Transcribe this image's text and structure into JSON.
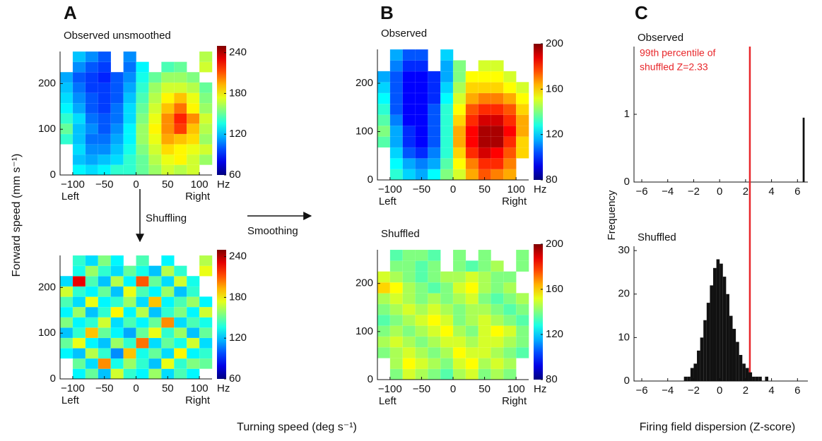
{
  "figure": {
    "panel_labels": [
      "A",
      "B",
      "C"
    ],
    "y_label": "Forward speed (mm s⁻¹)",
    "x_label": "Turning speed (deg s⁻¹)",
    "hist_y_label": "Frequency",
    "hist_x_label": "Firing field dispersion (Z-score)",
    "arrow_down": "Shuffling",
    "arrow_right": "Smoothing"
  },
  "chart_data": [
    {
      "type": "heatmap",
      "title": "Observed unsmoothed",
      "xlim": [
        -120,
        120
      ],
      "ylim": [
        0,
        270
      ],
      "xticks": [
        {
          "value": -100,
          "label": "−100"
        },
        {
          "value": -50,
          "label": "−50"
        },
        0,
        50,
        100
      ],
      "yticks": [
        0,
        100,
        200
      ],
      "x_end_labels": [
        "Left",
        "Right"
      ],
      "colormap": "jet",
      "clim": [
        60,
        250
      ],
      "cticks": [
        60,
        120,
        180,
        240
      ],
      "colorbar_unit": "Hz",
      "z": [
        [
          null,
          130,
          125,
          130,
          140,
          140,
          150,
          160,
          170,
          165,
          170,
          null
        ],
        [
          null,
          120,
          115,
          120,
          125,
          140,
          150,
          165,
          175,
          180,
          170,
          160
        ],
        [
          null,
          125,
          110,
          110,
          120,
          135,
          155,
          170,
          185,
          180,
          175,
          170
        ],
        [
          140,
          120,
          105,
          105,
          115,
          130,
          160,
          175,
          195,
          190,
          185,
          160
        ],
        [
          150,
          120,
          110,
          100,
          110,
          130,
          160,
          180,
          200,
          215,
          190,
          165
        ],
        [
          140,
          125,
          105,
          100,
          105,
          125,
          155,
          175,
          200,
          220,
          200,
          170
        ],
        [
          130,
          115,
          100,
          95,
          105,
          125,
          150,
          170,
          190,
          205,
          180,
          160
        ],
        [
          125,
          110,
          100,
          95,
          100,
          120,
          145,
          165,
          180,
          190,
          175,
          155
        ],
        [
          120,
          105,
          95,
          95,
          100,
          115,
          140,
          160,
          170,
          170,
          165,
          150
        ],
        [
          115,
          100,
          95,
          90,
          100,
          110,
          135,
          150,
          160,
          160,
          155,
          null
        ],
        [
          null,
          110,
          100,
          95,
          null,
          105,
          130,
          null,
          145,
          150,
          null,
          170
        ],
        [
          null,
          120,
          110,
          100,
          null,
          110,
          null,
          null,
          null,
          null,
          null,
          165
        ]
      ]
    },
    {
      "type": "heatmap",
      "xlim": [
        -120,
        120
      ],
      "ylim": [
        0,
        270
      ],
      "xticks": [
        {
          "value": -100,
          "label": "−100"
        },
        {
          "value": -50,
          "label": "−50"
        },
        0,
        50,
        100
      ],
      "yticks": [
        0,
        100,
        200
      ],
      "x_end_labels": [
        "Left",
        "Right"
      ],
      "colormap": "jet",
      "clim": [
        60,
        250
      ],
      "cticks": [
        60,
        120,
        180,
        240
      ],
      "colorbar_unit": "Hz",
      "z": [
        [
          null,
          130,
          150,
          120,
          170,
          140,
          130,
          160,
          125,
          145,
          130,
          null
        ],
        [
          null,
          150,
          125,
          200,
          135,
          160,
          140,
          120,
          175,
          140,
          155,
          150
        ],
        [
          130,
          120,
          165,
          140,
          110,
          190,
          135,
          150,
          125,
          180,
          130,
          140
        ],
        [
          150,
          175,
          130,
          120,
          160,
          140,
          205,
          125,
          150,
          135,
          170,
          125
        ],
        [
          120,
          140,
          190,
          150,
          130,
          115,
          150,
          175,
          140,
          160,
          120,
          150
        ],
        [
          155,
          130,
          140,
          170,
          125,
          145,
          130,
          150,
          200,
          125,
          145,
          135
        ],
        [
          130,
          160,
          120,
          140,
          180,
          130,
          165,
          120,
          140,
          155,
          130,
          170
        ],
        [
          145,
          125,
          175,
          130,
          140,
          160,
          125,
          190,
          130,
          145,
          160,
          130
        ],
        [
          170,
          140,
          130,
          150,
          120,
          175,
          145,
          130,
          160,
          120,
          140,
          null
        ],
        [
          125,
          230,
          145,
          120,
          165,
          130,
          210,
          150,
          125,
          170,
          135,
          null
        ],
        [
          null,
          135,
          160,
          140,
          125,
          150,
          135,
          120,
          165,
          140,
          null,
          175
        ],
        [
          null,
          140,
          125,
          155,
          130,
          null,
          145,
          null,
          130,
          null,
          null,
          165
        ]
      ]
    },
    {
      "type": "heatmap",
      "title": "Observed",
      "xlim": [
        -120,
        120
      ],
      "ylim": [
        0,
        270
      ],
      "xticks": [
        {
          "value": -100,
          "label": "−100"
        },
        {
          "value": -50,
          "label": "−50"
        },
        0,
        50,
        100
      ],
      "yticks": [
        0,
        100,
        200
      ],
      "x_end_labels": [
        "Left",
        "Right"
      ],
      "colormap": "jet",
      "clim": [
        80,
        200
      ],
      "cticks": [
        80,
        120,
        160,
        200
      ],
      "colorbar_unit": "Hz",
      "z": [
        [
          null,
          130,
          120,
          115,
          125,
          140,
          150,
          165,
          175,
          170,
          165,
          null
        ],
        [
          null,
          125,
          115,
          110,
          115,
          135,
          155,
          170,
          180,
          180,
          170,
          null
        ],
        [
          null,
          120,
          105,
          100,
          110,
          130,
          160,
          180,
          190,
          185,
          175,
          160
        ],
        [
          135,
          115,
          100,
          95,
          105,
          130,
          165,
          185,
          195,
          195,
          180,
          160
        ],
        [
          140,
          115,
          100,
          95,
          105,
          130,
          165,
          185,
          195,
          195,
          185,
          165
        ],
        [
          135,
          110,
          95,
          95,
          105,
          130,
          160,
          180,
          190,
          190,
          180,
          165
        ],
        [
          130,
          105,
          95,
          95,
          105,
          130,
          155,
          175,
          180,
          180,
          175,
          160
        ],
        [
          125,
          105,
          95,
          95,
          100,
          125,
          150,
          165,
          170,
          170,
          165,
          155
        ],
        [
          120,
          105,
          95,
          95,
          100,
          120,
          145,
          160,
          160,
          160,
          155,
          150
        ],
        [
          115,
          105,
          95,
          95,
          100,
          115,
          140,
          155,
          155,
          155,
          150,
          null
        ],
        [
          null,
          110,
          100,
          100,
          null,
          115,
          140,
          null,
          150,
          150,
          null,
          null
        ],
        [
          null,
          115,
          105,
          105,
          null,
          120,
          null,
          null,
          null,
          null,
          null,
          null
        ]
      ]
    },
    {
      "type": "heatmap",
      "title": "Shuffled",
      "xlim": [
        -120,
        120
      ],
      "ylim": [
        0,
        270
      ],
      "xticks": [
        {
          "value": -100,
          "label": "−100"
        },
        {
          "value": -50,
          "label": "−50"
        },
        0,
        50,
        100
      ],
      "yticks": [
        0,
        100,
        200
      ],
      "x_end_labels": [
        "Left",
        "Right"
      ],
      "colormap": "jet",
      "clim": [
        80,
        200
      ],
      "cticks": [
        80,
        120,
        160,
        200
      ],
      "colorbar_unit": "Hz",
      "z": [
        [
          null,
          140,
          150,
          145,
          140,
          135,
          145,
          150,
          140,
          145,
          140,
          null
        ],
        [
          null,
          145,
          155,
          150,
          145,
          140,
          150,
          155,
          145,
          150,
          145,
          null
        ],
        [
          140,
          145,
          150,
          145,
          140,
          145,
          155,
          150,
          150,
          145,
          140,
          135
        ],
        [
          145,
          150,
          145,
          140,
          145,
          150,
          150,
          145,
          150,
          150,
          145,
          140
        ],
        [
          140,
          145,
          140,
          145,
          150,
          155,
          145,
          140,
          150,
          155,
          150,
          140
        ],
        [
          135,
          140,
          145,
          150,
          155,
          150,
          140,
          145,
          150,
          145,
          140,
          135
        ],
        [
          140,
          145,
          150,
          145,
          150,
          145,
          140,
          145,
          145,
          140,
          135,
          140
        ],
        [
          145,
          150,
          145,
          140,
          145,
          140,
          145,
          150,
          140,
          135,
          140,
          145
        ],
        [
          160,
          155,
          145,
          140,
          135,
          140,
          150,
          155,
          145,
          140,
          145,
          null
        ],
        [
          150,
          145,
          140,
          135,
          140,
          145,
          145,
          150,
          145,
          140,
          140,
          null
        ],
        [
          null,
          140,
          140,
          135,
          140,
          null,
          140,
          135,
          140,
          145,
          null,
          140
        ],
        [
          null,
          135,
          140,
          140,
          135,
          null,
          140,
          null,
          140,
          null,
          null,
          140
        ]
      ]
    },
    {
      "type": "histogram",
      "title": "Observed",
      "xlim": [
        -6.6,
        6.8
      ],
      "ylim": [
        0,
        2
      ],
      "xticks": [
        {
          "value": -6,
          "label": "−6"
        },
        {
          "value": -4,
          "label": "−4"
        },
        {
          "value": -2,
          "label": "−2"
        },
        0,
        2,
        4,
        6
      ],
      "yticks": [
        0,
        1
      ],
      "bins": [
        6.4,
        6.55
      ],
      "counts": [
        0.95
      ],
      "color": "#111111",
      "threshold": 2.33,
      "threshold_color": "#e8262a",
      "annotation": [
        "99th percentile of",
        "shuffled Z=2.33"
      ]
    },
    {
      "type": "histogram",
      "title": "Shuffled",
      "xlim": [
        -6.6,
        6.8
      ],
      "ylim": [
        0,
        31
      ],
      "xticks": [
        {
          "value": -6,
          "label": "−6"
        },
        {
          "value": -4,
          "label": "−4"
        },
        {
          "value": -2,
          "label": "−2"
        },
        0,
        2,
        4,
        6
      ],
      "yticks": [
        0,
        10,
        20,
        30
      ],
      "bins": [
        -3,
        -2.75,
        -2.5,
        -2.25,
        -2,
        -1.75,
        -1.5,
        -1.25,
        -1,
        -0.75,
        -0.5,
        -0.25,
        0,
        0.25,
        0.5,
        0.75,
        1,
        1.25,
        1.5,
        1.75,
        2,
        2.25,
        2.5,
        2.75,
        3,
        3.25,
        3.5,
        3.75,
        4
      ],
      "counts": [
        0,
        1,
        1,
        3,
        4,
        7,
        10,
        14,
        18,
        22,
        26,
        28,
        27,
        24,
        20,
        15,
        12,
        9,
        6,
        4,
        3,
        2,
        1,
        1,
        1,
        0,
        1,
        0
      ],
      "color": "#111111"
    }
  ]
}
